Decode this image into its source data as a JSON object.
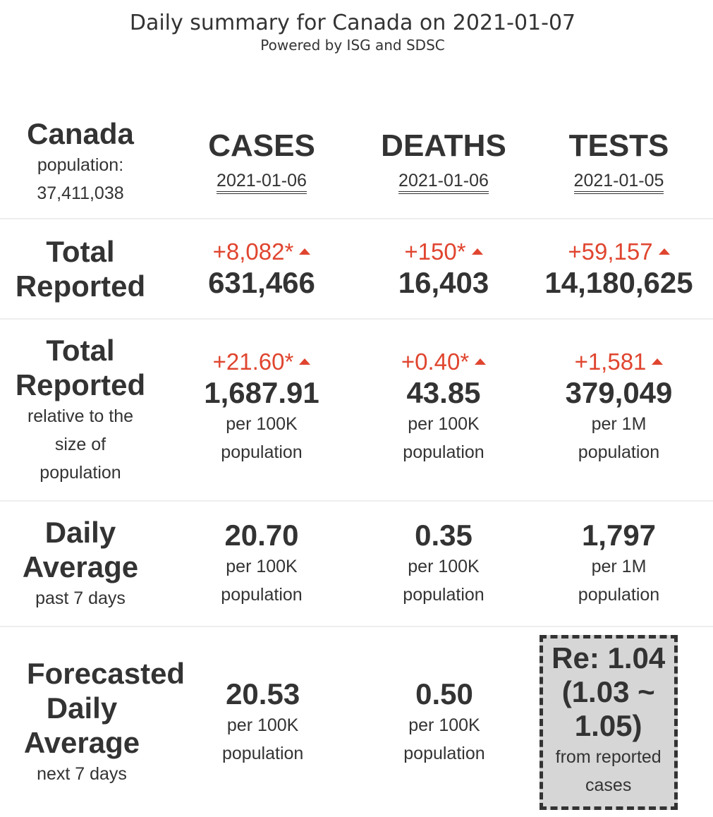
{
  "header": {
    "title": "Daily summary for Canada on 2021-01-07",
    "subtitle": "Powered by ISG and SDSC"
  },
  "region": {
    "name": "Canada",
    "population_label": "population:",
    "population": "37,411,038"
  },
  "columns": [
    {
      "title": "CASES",
      "date": "2021-01-06"
    },
    {
      "title": "DEATHS",
      "date": "2021-01-06"
    },
    {
      "title": "TESTS",
      "date": "2021-01-05"
    }
  ],
  "total_reported": {
    "label_line1": "Total",
    "label_line2": "Reported",
    "cases": {
      "delta": "+8,082*",
      "value": "631,466"
    },
    "deaths": {
      "delta": "+150*",
      "value": "16,403"
    },
    "tests": {
      "delta": "+59,157",
      "value": "14,180,625"
    }
  },
  "relative": {
    "label_line1": "Total",
    "label_line2": "Reported",
    "label_sub1": "relative to the",
    "label_sub2": "size of",
    "label_sub3": "population",
    "cases": {
      "delta": "+21.60*",
      "value": "1,687.91",
      "unit1": "per 100K",
      "unit2": "population"
    },
    "deaths": {
      "delta": "+0.40*",
      "value": "43.85",
      "unit1": "per 100K",
      "unit2": "population"
    },
    "tests": {
      "delta": "+1,581",
      "value": "379,049",
      "unit1": "per 1M",
      "unit2": "population"
    }
  },
  "daily_average": {
    "label_line1": "Daily",
    "label_line2": "Average",
    "label_sub": "past 7 days",
    "cases": {
      "value": "20.70",
      "unit1": "per 100K",
      "unit2": "population"
    },
    "deaths": {
      "value": "0.35",
      "unit1": "per 100K",
      "unit2": "population"
    },
    "tests": {
      "value": "1,797",
      "unit1": "per 1M",
      "unit2": "population"
    }
  },
  "forecast": {
    "label_line1": "Forecasted",
    "label_line2": "Daily",
    "label_line3": "Average",
    "label_sub": "next 7 days",
    "cases": {
      "value": "20.53",
      "unit1": "per 100K",
      "unit2": "population"
    },
    "deaths": {
      "value": "0.50",
      "unit1": "per 100K",
      "unit2": "population"
    },
    "re": {
      "line1": "Re: 1.04",
      "line2": "(1.03 ~",
      "line3": "1.05)",
      "sub1": "from reported",
      "sub2": "cases"
    }
  },
  "colors": {
    "increase": "#e0452f",
    "text": "#333333",
    "re_box_bg": "#d6d6d6"
  },
  "icons": {
    "increase": "triangle-up-icon"
  }
}
